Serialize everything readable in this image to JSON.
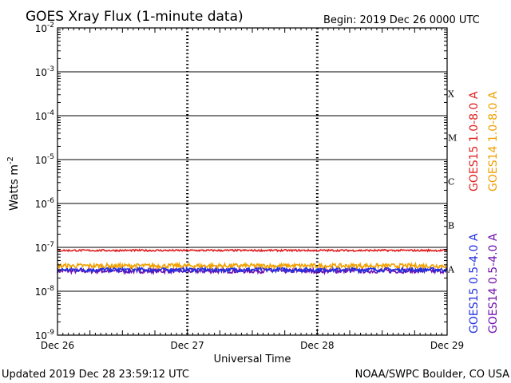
{
  "chart_data": {
    "type": "line",
    "title": "GOES Xray Flux (1-minute data)",
    "begin_label": "Begin:  2019 Dec 26 0000 UTC",
    "ylabel_main": "Watts m",
    "ylabel_exp": "-2",
    "xlabel": "Universal Time",
    "x_ticks": [
      "Dec 26",
      "Dec 27",
      "Dec 28",
      "Dec 29"
    ],
    "xlim": [
      0,
      3
    ],
    "y_scale": "log",
    "ylim_exponent": [
      -9,
      -2
    ],
    "y_ticks": [
      {
        "base": "10",
        "exp": "-2",
        "value": 0.01
      },
      {
        "base": "10",
        "exp": "-3",
        "value": 0.001
      },
      {
        "base": "10",
        "exp": "-4",
        "value": 0.0001
      },
      {
        "base": "10",
        "exp": "-5",
        "value": 1e-05
      },
      {
        "base": "10",
        "exp": "-6",
        "value": 1e-06
      },
      {
        "base": "10",
        "exp": "-7",
        "value": 1e-07
      },
      {
        "base": "10",
        "exp": "-8",
        "value": 1e-08
      },
      {
        "base": "10",
        "exp": "-9",
        "value": 1e-09
      }
    ],
    "flare_classes": [
      {
        "label": "X",
        "value": 0.0001
      },
      {
        "label": "M",
        "value": 1e-05
      },
      {
        "label": "C",
        "value": 1e-06
      },
      {
        "label": "B",
        "value": 1e-07
      },
      {
        "label": "A",
        "value": 1e-08
      }
    ],
    "series": [
      {
        "name": "GOES15 1.0-8.0 A",
        "color": "#e02020",
        "typical": 8.5e-08,
        "noise": 0.02
      },
      {
        "name": "GOES14 1.0-8.0 A",
        "color": "#f0a000",
        "typical": 3.8e-08,
        "noise": 0.05
      },
      {
        "name": "GOES15 0.5-4.0 A",
        "color": "#2030e0",
        "typical": 3.1e-08,
        "noise": 0.05
      },
      {
        "name": "GOES14 0.5-4.0 A",
        "color": "#7010b0",
        "typical": 2.9e-08,
        "noise": 0.05
      }
    ],
    "grid": true,
    "legend": "right, vertical"
  },
  "footer": {
    "updated": "Updated 2019 Dec 28 23:59:12 UTC",
    "credit": "NOAA/SWPC Boulder, CO USA"
  },
  "colors": {
    "axis": "#000000",
    "background": "#ffffff"
  }
}
